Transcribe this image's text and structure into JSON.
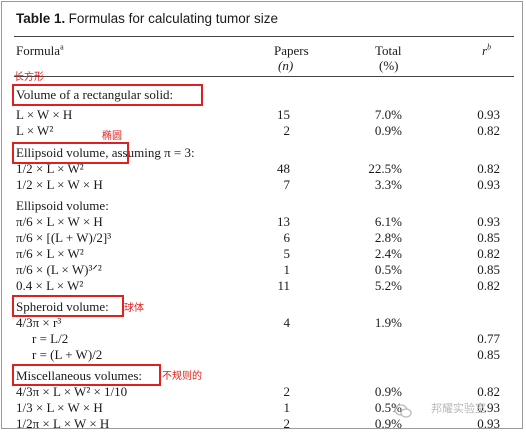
{
  "table": {
    "title_bold": "Table 1.",
    "title_rest": "Formulas for calculating tumor size",
    "headers": {
      "formula": "Formula",
      "formula_sup": "a",
      "papers": "Papers",
      "papers_sub": "(n)",
      "total": "Total",
      "total_sub": "(%)",
      "r": "r",
      "r_sup": "b"
    },
    "rows": [
      {
        "kind": "section",
        "label": "Volume of a rectangular solid:"
      },
      {
        "kind": "data",
        "formula": "L × W × H",
        "papers": "15",
        "total": "7.0%",
        "r": "0.93"
      },
      {
        "kind": "data",
        "formula": "L × W²",
        "papers": "2",
        "total": "0.9%",
        "r": "0.82"
      },
      {
        "kind": "section",
        "label": "Ellipsoid volume,",
        "label_suffix": " assuming π = 3:"
      },
      {
        "kind": "data",
        "formula": "1/2 × L × W²",
        "papers": "48",
        "total": "22.5%",
        "r": "0.82"
      },
      {
        "kind": "data",
        "formula": "1/2 × L × W × H",
        "papers": "7",
        "total": "3.3%",
        "r": "0.93"
      },
      {
        "kind": "section",
        "label": "Ellipsoid volume:"
      },
      {
        "kind": "data",
        "formula": "π/6 × L × W × H",
        "papers": "13",
        "total": "6.1%",
        "r": "0.93"
      },
      {
        "kind": "data",
        "formula": "π/6 × [(L + W)/2]³",
        "papers": "6",
        "total": "2.8%",
        "r": "0.85"
      },
      {
        "kind": "data",
        "formula": "π/6 × L × W²",
        "papers": "5",
        "total": "2.4%",
        "r": "0.82"
      },
      {
        "kind": "data",
        "formula": "π/6 × (L × W)³ᐟ²",
        "papers": "1",
        "total": "0.5%",
        "r": "0.85"
      },
      {
        "kind": "data",
        "formula": "0.4 × L × W²",
        "papers": "11",
        "total": "5.2%",
        "r": "0.82"
      },
      {
        "kind": "section",
        "label": "Spheroid volume:"
      },
      {
        "kind": "data",
        "formula": "4/3π × r³",
        "papers": "4",
        "total": "1.9%",
        "r": ""
      },
      {
        "kind": "data",
        "formula": "r = L/2",
        "papers": "",
        "total": "",
        "r": "0.77"
      },
      {
        "kind": "data",
        "formula": "r = (L + W)/2",
        "papers": "",
        "total": "",
        "r": "0.85"
      },
      {
        "kind": "section",
        "label": "Miscellaneous volumes:"
      },
      {
        "kind": "data",
        "formula": "4/3π × L × W² × 1/10",
        "papers": "2",
        "total": "0.9%",
        "r": "0.82"
      },
      {
        "kind": "data",
        "formula": "1/3 × L × W × H",
        "papers": "1",
        "total": "0.5%",
        "r": "0.93"
      },
      {
        "kind": "data",
        "formula": "1/2π × L × W × H",
        "papers": "2",
        "total": "0.9%",
        "r": "0.93"
      }
    ]
  },
  "annotations": {
    "rectangular": "长方形",
    "ellipsoid": "椭圆",
    "spheroid": "球体",
    "misc": "不规则的",
    "box_color": "#e0201e"
  },
  "watermark": {
    "text": "邦耀实验室"
  }
}
